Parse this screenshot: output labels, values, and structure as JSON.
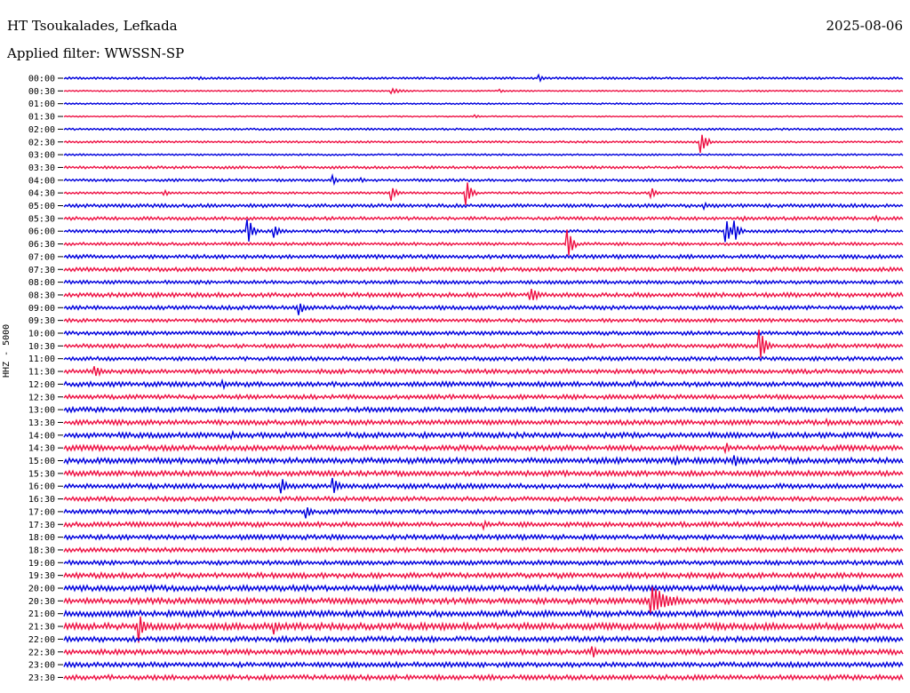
{
  "header": {
    "station": "HT Tsoukalades, Lefkada",
    "date": "2025-08-06",
    "filter": "Applied filter: WWSSN-SP"
  },
  "chart_data": {
    "type": "line",
    "title": "HT Tsoukalades, Lefkada",
    "ylabel": "HHZ - 5000",
    "colors": [
      "#0000dd",
      "#ee1144"
    ],
    "row_labels": [
      "00:00",
      "00:30",
      "01:00",
      "01:30",
      "02:00",
      "02:30",
      "03:00",
      "03:30",
      "04:00",
      "04:30",
      "05:00",
      "05:30",
      "06:00",
      "06:30",
      "07:00",
      "07:30",
      "08:00",
      "08:30",
      "09:00",
      "09:30",
      "10:00",
      "10:30",
      "11:00",
      "11:30",
      "12:00",
      "12:30",
      "13:00",
      "13:30",
      "14:00",
      "14:30",
      "15:00",
      "15:30",
      "16:00",
      "16:30",
      "17:00",
      "17:30",
      "18:00",
      "18:30",
      "19:00",
      "19:30",
      "20:00",
      "20:30",
      "21:00",
      "21:30",
      "22:00",
      "22:30",
      "23:00",
      "23:30"
    ],
    "noise": [
      1,
      0.6,
      0.7,
      0.6,
      0.9,
      0.9,
      0.8,
      1.2,
      1.2,
      1,
      1.6,
      1.5,
      1.4,
      1.4,
      1.8,
      1.8,
      1.6,
      2.0,
      1.8,
      1.6,
      1.8,
      1.8,
      1.8,
      2.0,
      2.2,
      2.0,
      2.2,
      2.2,
      2.4,
      2.4,
      2.6,
      2.4,
      2.2,
      2.0,
      2.0,
      2.2,
      2.2,
      2.0,
      2.0,
      2.4,
      2.6,
      2.6,
      2.8,
      3.0,
      2.4,
      2.4,
      2.2,
      2.2
    ],
    "events": [
      {
        "row": 0,
        "t": 0.163,
        "amp": 2
      },
      {
        "row": 0,
        "t": 0.567,
        "amp": 4
      },
      {
        "row": 1,
        "t": 0.39,
        "amp": 3,
        "dur": 0.03
      },
      {
        "row": 1,
        "t": 0.52,
        "amp": 2
      },
      {
        "row": 3,
        "t": 0.49,
        "amp": 2
      },
      {
        "row": 5,
        "t": 0.76,
        "amp": 14
      },
      {
        "row": 8,
        "t": 0.32,
        "amp": 6
      },
      {
        "row": 8,
        "t": 0.355,
        "amp": 3
      },
      {
        "row": 9,
        "t": 0.12,
        "amp": 3,
        "dur": 0.02
      },
      {
        "row": 9,
        "t": 0.39,
        "amp": 10
      },
      {
        "row": 9,
        "t": 0.48,
        "amp": 14
      },
      {
        "row": 9,
        "t": 0.7,
        "amp": 8
      },
      {
        "row": 10,
        "t": 0.763,
        "amp": 4
      },
      {
        "row": 11,
        "t": 0.81,
        "amp": 4
      },
      {
        "row": 11,
        "t": 0.97,
        "amp": 3
      },
      {
        "row": 12,
        "t": 0.22,
        "amp": 14
      },
      {
        "row": 12,
        "t": 0.25,
        "amp": 12
      },
      {
        "row": 12,
        "t": 0.79,
        "amp": 14
      },
      {
        "row": 12,
        "t": 0.8,
        "amp": 12
      },
      {
        "row": 13,
        "t": 0.6,
        "amp": 22
      },
      {
        "row": 17,
        "t": 0.557,
        "amp": 8,
        "dur": 0.02
      },
      {
        "row": 18,
        "t": 0.28,
        "amp": 10
      },
      {
        "row": 21,
        "t": 0.83,
        "amp": 22
      },
      {
        "row": 23,
        "t": 0.036,
        "amp": 7,
        "dur": 0.02
      },
      {
        "row": 24,
        "t": 0.19,
        "amp": 5
      },
      {
        "row": 24,
        "t": 0.68,
        "amp": 5
      },
      {
        "row": 27,
        "t": 0.91,
        "amp": 5
      },
      {
        "row": 28,
        "t": 0.2,
        "amp": 5
      },
      {
        "row": 28,
        "t": 0.43,
        "amp": 5
      },
      {
        "row": 29,
        "t": 0.79,
        "amp": 6
      },
      {
        "row": 30,
        "t": 0.8,
        "amp": 8
      },
      {
        "row": 30,
        "t": 0.73,
        "amp": 6
      },
      {
        "row": 32,
        "t": 0.26,
        "amp": 10
      },
      {
        "row": 32,
        "t": 0.32,
        "amp": 14
      },
      {
        "row": 34,
        "t": 0.29,
        "amp": 8
      },
      {
        "row": 35,
        "t": 0.5,
        "amp": 6
      },
      {
        "row": 41,
        "t": 0.7,
        "amp": 20,
        "dur": 0.04
      },
      {
        "row": 43,
        "t": 0.09,
        "amp": 20
      },
      {
        "row": 43,
        "t": 0.25,
        "amp": 10
      },
      {
        "row": 45,
        "t": 0.63,
        "amp": 8
      }
    ]
  }
}
